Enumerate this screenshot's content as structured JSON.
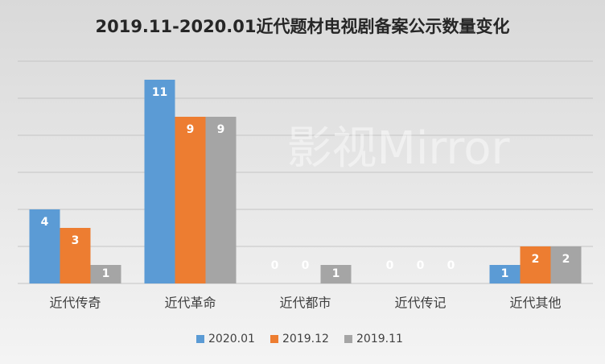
{
  "chart_data": {
    "type": "bar",
    "title": "2019.11-2020.01近代题材电视剧备案公示数量变化",
    "watermark": "影视Mirror",
    "categories": [
      "近代传奇",
      "近代革命",
      "近代都市",
      "近代传记",
      "近代其他"
    ],
    "series": [
      {
        "name": "2020.01",
        "color": "#5b9bd5",
        "values": [
          4,
          11,
          0,
          0,
          1
        ]
      },
      {
        "name": "2019.12",
        "color": "#ed7d31",
        "values": [
          3,
          9,
          0,
          0,
          2
        ]
      },
      {
        "name": "2019.11",
        "color": "#a5a5a5",
        "values": [
          1,
          9,
          1,
          0,
          2
        ]
      }
    ],
    "ylim": [
      0,
      12
    ],
    "yticks": [
      0,
      2,
      4,
      6,
      8,
      10,
      12
    ],
    "grid": true,
    "legend": "bottom"
  }
}
